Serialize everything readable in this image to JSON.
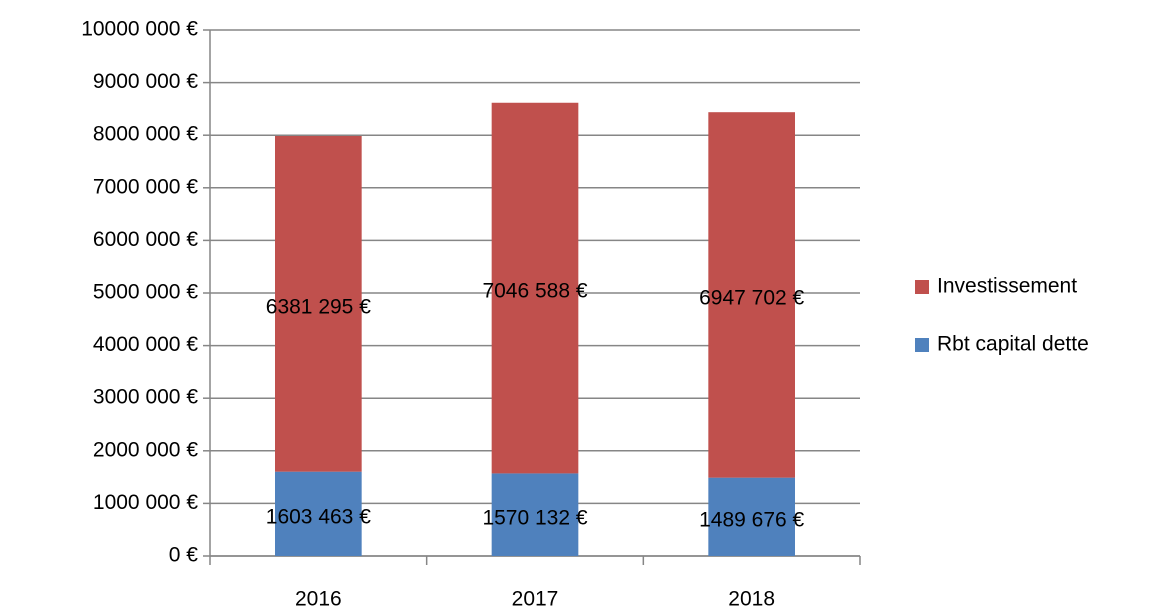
{
  "chart_data": {
    "type": "stacked_bar",
    "categories": [
      "2016",
      "2017",
      "2018"
    ],
    "series": [
      {
        "name": "Rbt capital dette",
        "color": "#4f81bd",
        "values": [
          1603463,
          1570132,
          1489676
        ],
        "value_labels": [
          "1603 463 €",
          "1570 132 €",
          "1489 676 €"
        ]
      },
      {
        "name": "Investissement",
        "color": "#c0504d",
        "values": [
          6381295,
          7046588,
          6947702
        ],
        "value_labels": [
          "6381 295 €",
          "7046 588 €",
          "6947 702 €"
        ]
      }
    ],
    "ylim": [
      0,
      10000000
    ],
    "yticks": [
      {
        "value": 0,
        "label": "0 €"
      },
      {
        "value": 1000000,
        "label": "1000 000 €"
      },
      {
        "value": 2000000,
        "label": "2000 000 €"
      },
      {
        "value": 3000000,
        "label": "3000 000 €"
      },
      {
        "value": 4000000,
        "label": "4000 000 €"
      },
      {
        "value": 5000000,
        "label": "5000 000 €"
      },
      {
        "value": 6000000,
        "label": "6000 000 €"
      },
      {
        "value": 7000000,
        "label": "7000 000 €"
      },
      {
        "value": 8000000,
        "label": "8000 000 €"
      },
      {
        "value": 9000000,
        "label": "9000 000 €"
      },
      {
        "value": 10000000,
        "label": "10000 000 €"
      }
    ],
    "grid": true,
    "legend": "right"
  }
}
